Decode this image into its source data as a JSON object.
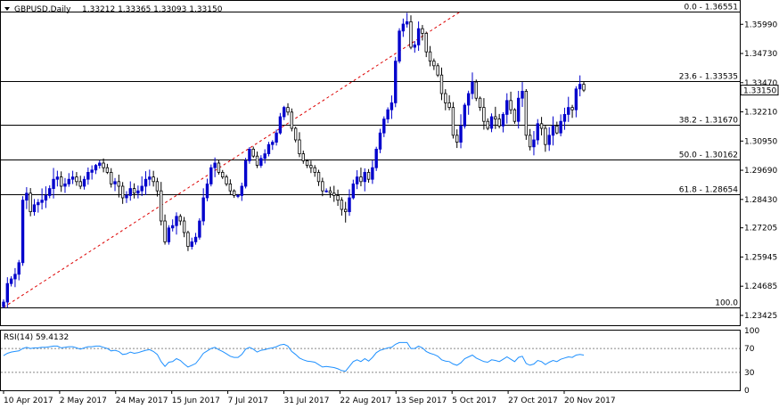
{
  "header": {
    "menu_arrow": "triangle-down-icon",
    "symbol_label": "GBPUSD,Daily",
    "ohlc_label": "1.33212 1.33365 1.33093 1.33150"
  },
  "price_badge": "1.33150",
  "indicator_label": "RSI(14) 59.4132",
  "colors": {
    "bull": "#0000cc",
    "bear": "#000000",
    "fib_line": "#000000",
    "trend_line": "#dd0000",
    "rsi_line": "#1e90ff",
    "rsi_level": "#888888",
    "badge_bg": "#ffffff",
    "badge_border": "#000000"
  },
  "chart_data": [
    {
      "type": "candlestick",
      "panel": "price",
      "ylim": [
        1.23,
        1.37
      ],
      "y_ticks": [
        "1.35990",
        "1.34730",
        "1.33470",
        "1.32210",
        "1.30950",
        "1.29690",
        "1.28430",
        "1.27205",
        "1.25945",
        "1.24685",
        "1.23425"
      ],
      "x_tick_labels": [
        "10 Apr 2017",
        "2 May 2017",
        "24 May 2017",
        "15 Jun 2017",
        "7 Jul 2017",
        "31 Jul 2017",
        "22 Aug 2017",
        "13 Sep 2017",
        "5 Oct 2017",
        "27 Oct 2017",
        "20 Nov 2017"
      ],
      "fib_levels": [
        {
          "label": "0.0 - 1.36551",
          "value": 1.36551
        },
        {
          "label": "23.6 - 1.33535",
          "value": 1.33535
        },
        {
          "label": "38.2 - 1.31670",
          "value": 1.3167
        },
        {
          "label": "50.0 - 1.30162",
          "value": 1.30162
        },
        {
          "label": "61.8 - 1.28654",
          "value": 1.28654
        },
        {
          "label": "100.0",
          "value": 1.2377
        }
      ],
      "trend_line": {
        "from": {
          "bar": 0,
          "value": 1.2377
        },
        "to": {
          "bar": 119,
          "value": 1.3655
        }
      },
      "closes": [
        1.24,
        1.248,
        1.25,
        1.252,
        1.257,
        1.284,
        1.287,
        1.279,
        1.282,
        1.283,
        1.284,
        1.286,
        1.289,
        1.293,
        1.294,
        1.29,
        1.291,
        1.293,
        1.294,
        1.292,
        1.29,
        1.293,
        1.296,
        1.297,
        1.299,
        1.3,
        1.298,
        1.296,
        1.291,
        1.292,
        1.29,
        1.285,
        1.286,
        1.289,
        1.287,
        1.288,
        1.29,
        1.293,
        1.294,
        1.292,
        1.288,
        1.275,
        1.266,
        1.272,
        1.273,
        1.277,
        1.275,
        1.27,
        1.264,
        1.266,
        1.268,
        1.275,
        1.285,
        1.291,
        1.298,
        1.3,
        1.296,
        1.294,
        1.291,
        1.288,
        1.286,
        1.286,
        1.29,
        1.301,
        1.306,
        1.303,
        1.299,
        1.302,
        1.304,
        1.308,
        1.309,
        1.313,
        1.32,
        1.324,
        1.322,
        1.315,
        1.31,
        1.304,
        1.301,
        1.299,
        1.298,
        1.296,
        1.292,
        1.288,
        1.288,
        1.287,
        1.286,
        1.284,
        1.28,
        1.279,
        1.285,
        1.291,
        1.294,
        1.292,
        1.296,
        1.293,
        1.298,
        1.306,
        1.313,
        1.319,
        1.323,
        1.326,
        1.344,
        1.357,
        1.36,
        1.361,
        1.35,
        1.351,
        1.358,
        1.356,
        1.348,
        1.344,
        1.342,
        1.338,
        1.33,
        1.326,
        1.324,
        1.312,
        1.309,
        1.316,
        1.325,
        1.33,
        1.335,
        1.328,
        1.324,
        1.318,
        1.315,
        1.32,
        1.319,
        1.316,
        1.321,
        1.327,
        1.323,
        1.318,
        1.328,
        1.331,
        1.312,
        1.307,
        1.31,
        1.317,
        1.315,
        1.308,
        1.312,
        1.316,
        1.313,
        1.318,
        1.321,
        1.324,
        1.323,
        1.332,
        1.334,
        1.3315
      ]
    },
    {
      "type": "line",
      "panel": "indicator",
      "name": "RSI(14)",
      "ylim": [
        0,
        100
      ],
      "y_ticks": [
        "100",
        "70",
        "30",
        "0"
      ],
      "levels": [
        70,
        30
      ],
      "values": [
        58,
        62,
        64,
        65,
        66,
        70,
        72,
        70,
        71,
        71,
        72,
        72,
        73,
        74,
        74,
        71,
        72,
        73,
        73,
        71,
        69,
        71,
        73,
        73,
        74,
        74,
        72,
        70,
        66,
        67,
        65,
        60,
        61,
        64,
        62,
        63,
        65,
        67,
        68,
        65,
        60,
        48,
        40,
        47,
        48,
        53,
        50,
        44,
        39,
        42,
        45,
        53,
        62,
        66,
        70,
        72,
        68,
        65,
        61,
        57,
        55,
        55,
        60,
        69,
        72,
        69,
        64,
        67,
        68,
        70,
        71,
        73,
        76,
        77,
        74,
        65,
        60,
        54,
        51,
        49,
        48,
        47,
        43,
        39,
        40,
        39,
        38,
        36,
        33,
        32,
        40,
        48,
        51,
        48,
        53,
        49,
        55,
        63,
        67,
        69,
        71,
        72,
        77,
        80,
        80,
        80,
        70,
        70,
        74,
        71,
        65,
        62,
        60,
        57,
        51,
        49,
        48,
        44,
        42,
        46,
        53,
        56,
        59,
        54,
        51,
        48,
        47,
        51,
        50,
        48,
        52,
        56,
        52,
        48,
        55,
        57,
        45,
        42,
        44,
        50,
        48,
        43,
        47,
        50,
        48,
        52,
        54,
        56,
        55,
        59,
        60,
        59
      ]
    }
  ]
}
